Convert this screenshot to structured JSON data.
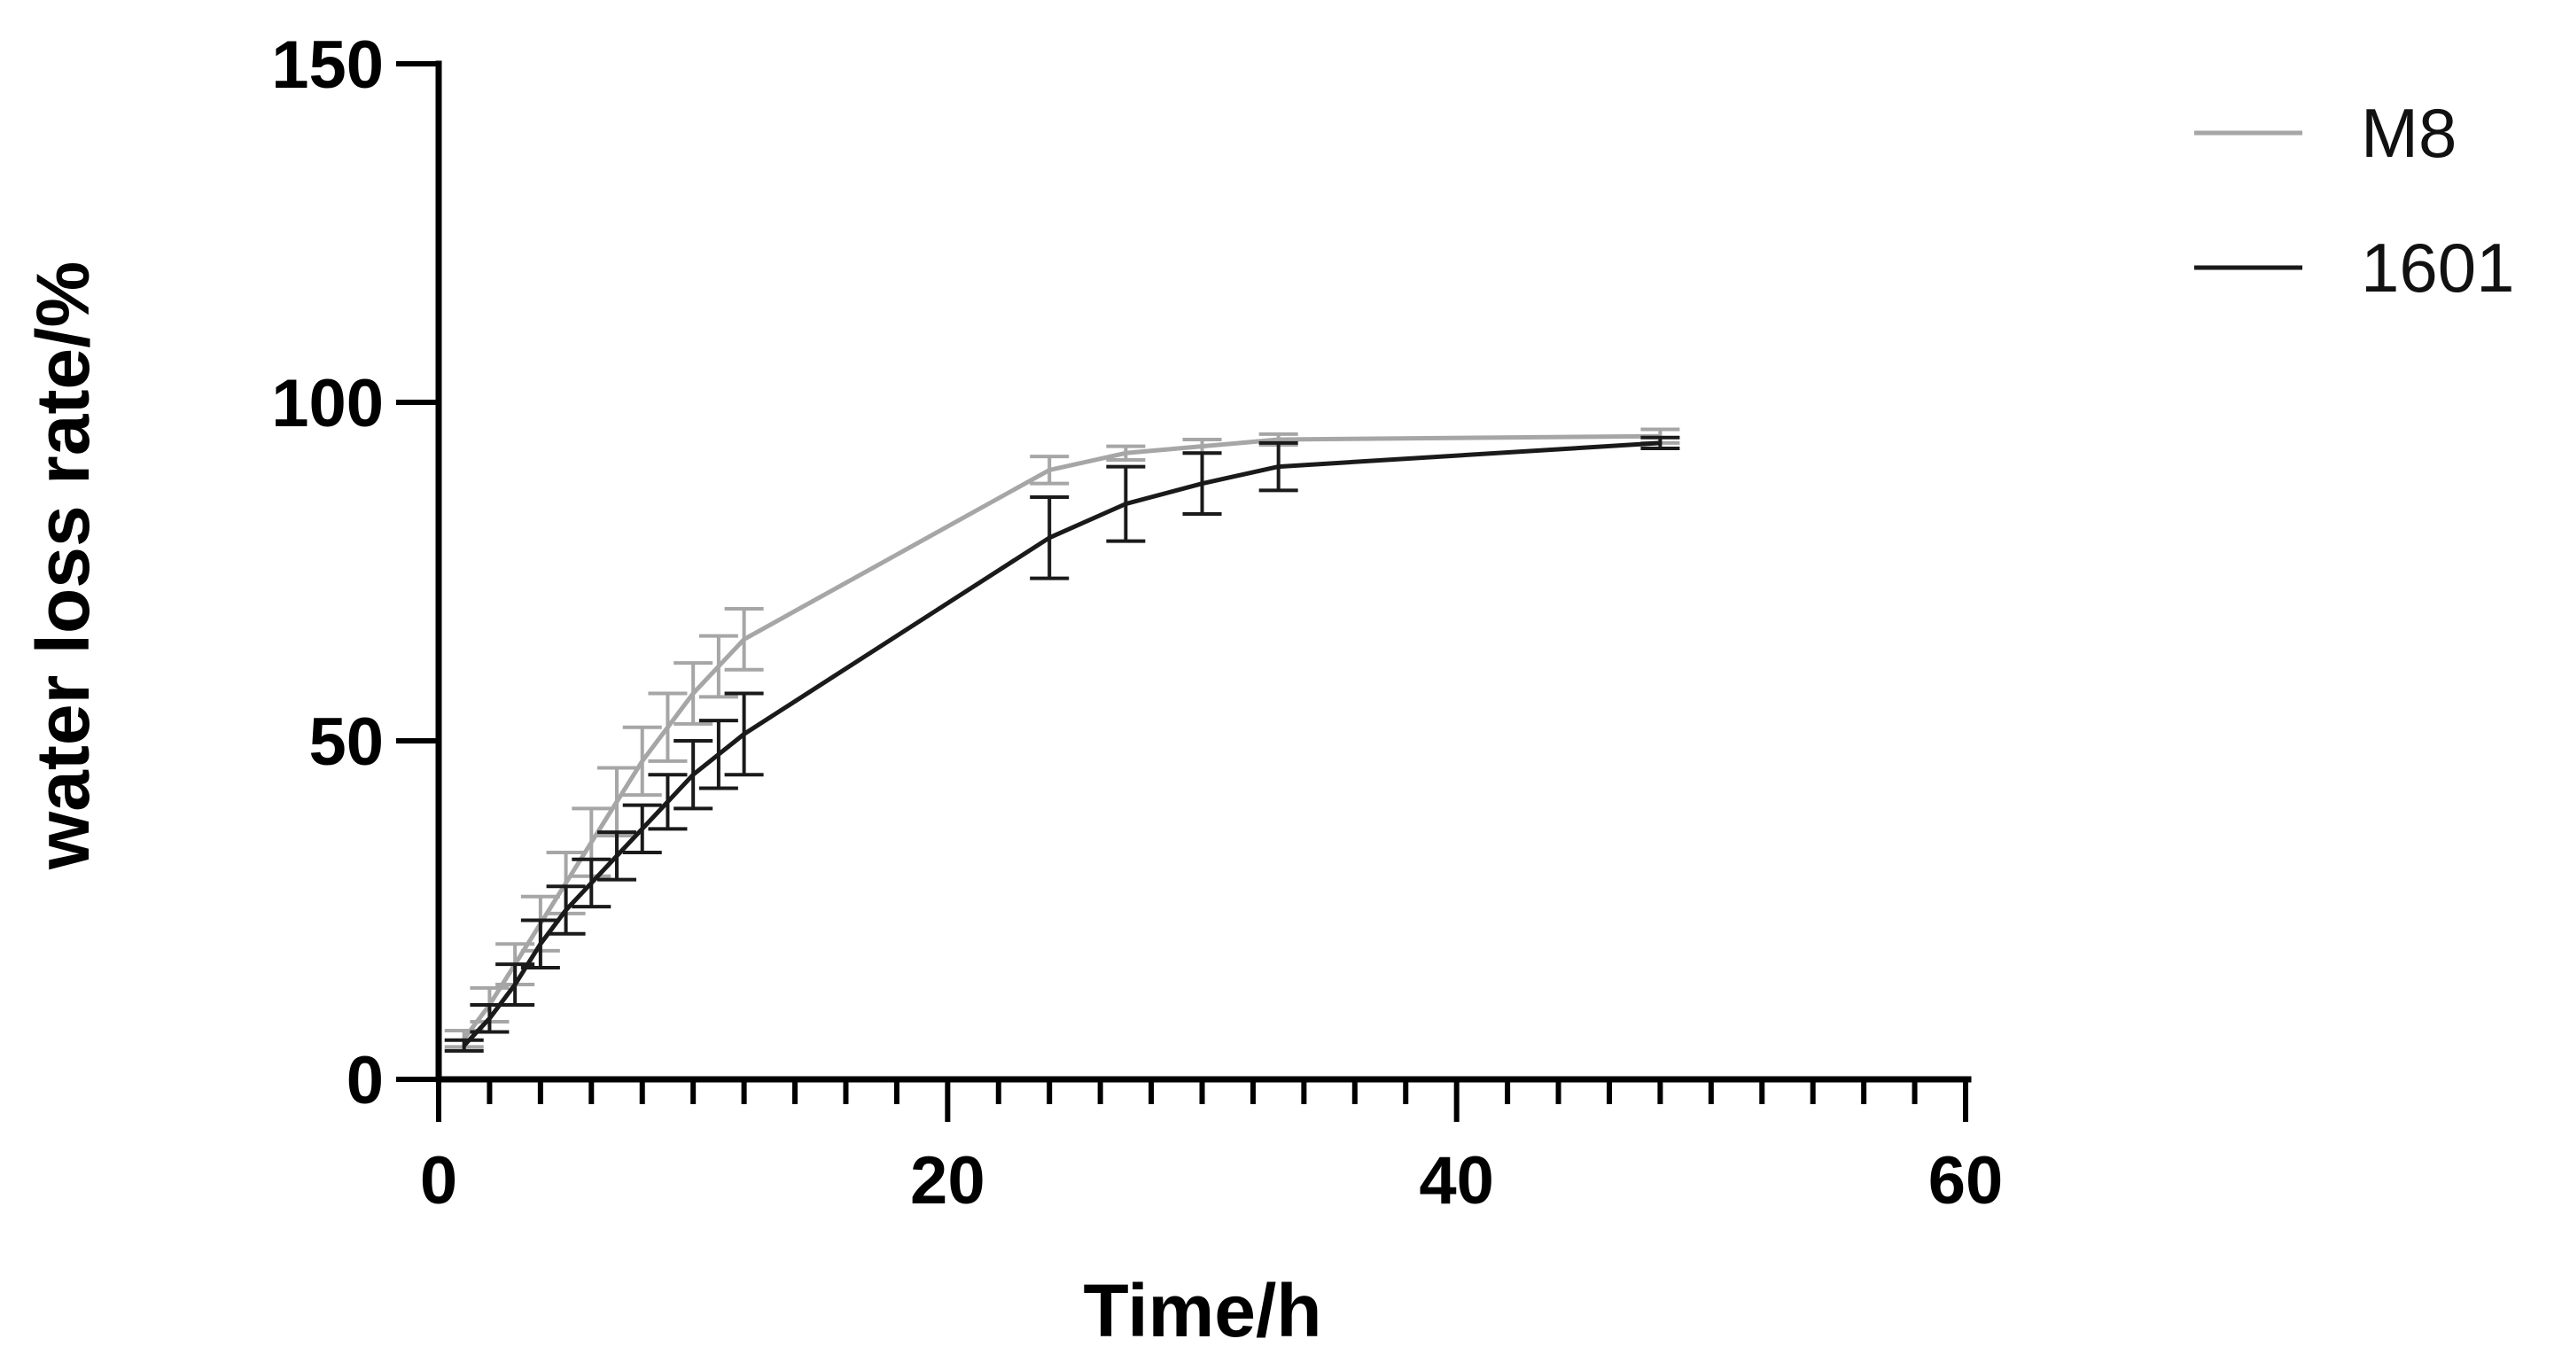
{
  "chart_data": {
    "type": "line",
    "xlabel": "Time/h",
    "ylabel": "water loss rate/%",
    "xlim": [
      0,
      60
    ],
    "ylim": [
      0,
      150
    ],
    "x_ticks": [
      0,
      20,
      40,
      60
    ],
    "y_ticks": [
      0,
      50,
      100,
      150
    ],
    "x_minor_step": 2,
    "grid": false,
    "legend_position": "top-right",
    "series": [
      {
        "name": "M8",
        "color": "#a6a6a6",
        "x": [
          1,
          2,
          3,
          4,
          5,
          6,
          7,
          8,
          9,
          10,
          11,
          12,
          24,
          27,
          30,
          33,
          48
        ],
        "y": [
          6,
          11,
          17,
          23,
          29,
          35,
          41,
          47,
          52,
          57,
          61,
          65,
          90,
          92.5,
          93.5,
          94.5,
          95
        ],
        "error": [
          1.2,
          2.5,
          3,
          4,
          4.5,
          5,
          5,
          5,
          5,
          4.5,
          4.5,
          4.5,
          2,
          1,
          1,
          0.8,
          1
        ]
      },
      {
        "name": "1601",
        "color": "#1a1a1a",
        "x": [
          1,
          2,
          3,
          4,
          5,
          6,
          7,
          8,
          9,
          10,
          11,
          12,
          24,
          27,
          30,
          33,
          48
        ],
        "y": [
          5,
          9,
          14,
          20,
          25,
          29,
          33,
          37,
          41,
          45,
          48,
          51,
          80,
          85,
          88,
          90.5,
          94
        ],
        "error": [
          0.8,
          2,
          3,
          3.5,
          3.5,
          3.5,
          3.5,
          3.5,
          4,
          5,
          5,
          6,
          6,
          5.5,
          4.5,
          3.5,
          0.8
        ]
      }
    ]
  }
}
